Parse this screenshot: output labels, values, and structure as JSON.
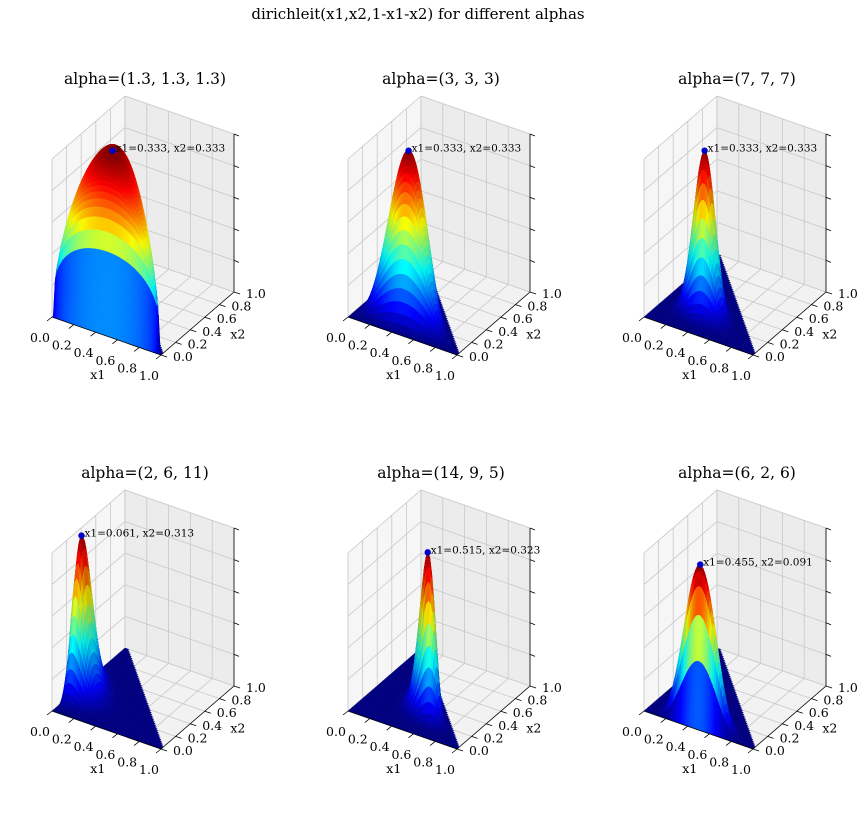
{
  "suptitle": "dirichleit(x1,x2,1-x1-x2) for different alphas",
  "colormap": [
    "#00007f",
    "#0000ff",
    "#007fff",
    "#00ffff",
    "#7fff7f",
    "#ffff00",
    "#ff7f00",
    "#ff0000",
    "#7f0000"
  ],
  "chart_data": [
    {
      "type": "surface",
      "title": "alpha=(1.3, 1.3, 1.3)",
      "alpha": [
        1.3,
        1.3,
        1.3
      ],
      "xlabel": "x1",
      "ylabel": "x2",
      "xticks": [
        "0.0",
        "0.2",
        "0.4",
        "0.6",
        "0.8",
        "1.0"
      ],
      "yticks": [
        "0.0",
        "0.2",
        "0.4",
        "0.6",
        "0.8",
        "1.0"
      ],
      "grid": true,
      "peak": {
        "x1": 0.333,
        "x2": 0.333
      },
      "annotation": "x1=0.333, x2=0.333"
    },
    {
      "type": "surface",
      "title": "alpha=(3, 3, 3)",
      "alpha": [
        3,
        3,
        3
      ],
      "xlabel": "x1",
      "ylabel": "x2",
      "xticks": [
        "0.0",
        "0.2",
        "0.4",
        "0.6",
        "0.8",
        "1.0"
      ],
      "yticks": [
        "0.0",
        "0.2",
        "0.4",
        "0.6",
        "0.8",
        "1.0"
      ],
      "grid": true,
      "peak": {
        "x1": 0.333,
        "x2": 0.333
      },
      "annotation": "x1=0.333, x2=0.333"
    },
    {
      "type": "surface",
      "title": "alpha=(7, 7, 7)",
      "alpha": [
        7,
        7,
        7
      ],
      "xlabel": "x1",
      "ylabel": "x2",
      "xticks": [
        "0.0",
        "0.2",
        "0.4",
        "0.6",
        "0.8",
        "1.0"
      ],
      "yticks": [
        "0.0",
        "0.2",
        "0.4",
        "0.6",
        "0.8",
        "1.0"
      ],
      "grid": true,
      "peak": {
        "x1": 0.333,
        "x2": 0.333
      },
      "annotation": "x1=0.333, x2=0.333"
    },
    {
      "type": "surface",
      "title": "alpha=(2, 6, 11)",
      "alpha": [
        2,
        6,
        11
      ],
      "xlabel": "x1",
      "ylabel": "x2",
      "xticks": [
        "0.0",
        "0.2",
        "0.4",
        "0.6",
        "0.8",
        "1.0"
      ],
      "yticks": [
        "0.0",
        "0.2",
        "0.4",
        "0.6",
        "0.8",
        "1.0"
      ],
      "grid": true,
      "peak": {
        "x1": 0.061,
        "x2": 0.313
      },
      "annotation": "x1=0.061, x2=0.313"
    },
    {
      "type": "surface",
      "title": "alpha=(14, 9, 5)",
      "alpha": [
        14,
        9,
        5
      ],
      "xlabel": "x1",
      "ylabel": "x2",
      "xticks": [
        "0.0",
        "0.2",
        "0.4",
        "0.6",
        "0.8",
        "1.0"
      ],
      "yticks": [
        "0.0",
        "0.2",
        "0.4",
        "0.6",
        "0.8",
        "1.0"
      ],
      "grid": true,
      "peak": {
        "x1": 0.515,
        "x2": 0.323
      },
      "annotation": "x1=0.515, x2=0.323"
    },
    {
      "type": "surface",
      "title": "alpha=(6, 2, 6)",
      "alpha": [
        6,
        2,
        6
      ],
      "xlabel": "x1",
      "ylabel": "x2",
      "xticks": [
        "0.0",
        "0.2",
        "0.4",
        "0.6",
        "0.8",
        "1.0"
      ],
      "yticks": [
        "0.0",
        "0.2",
        "0.4",
        "0.6",
        "0.8",
        "1.0"
      ],
      "grid": true,
      "peak": {
        "x1": 0.455,
        "x2": 0.091
      },
      "annotation": "x1=0.455, x2=0.091"
    }
  ]
}
